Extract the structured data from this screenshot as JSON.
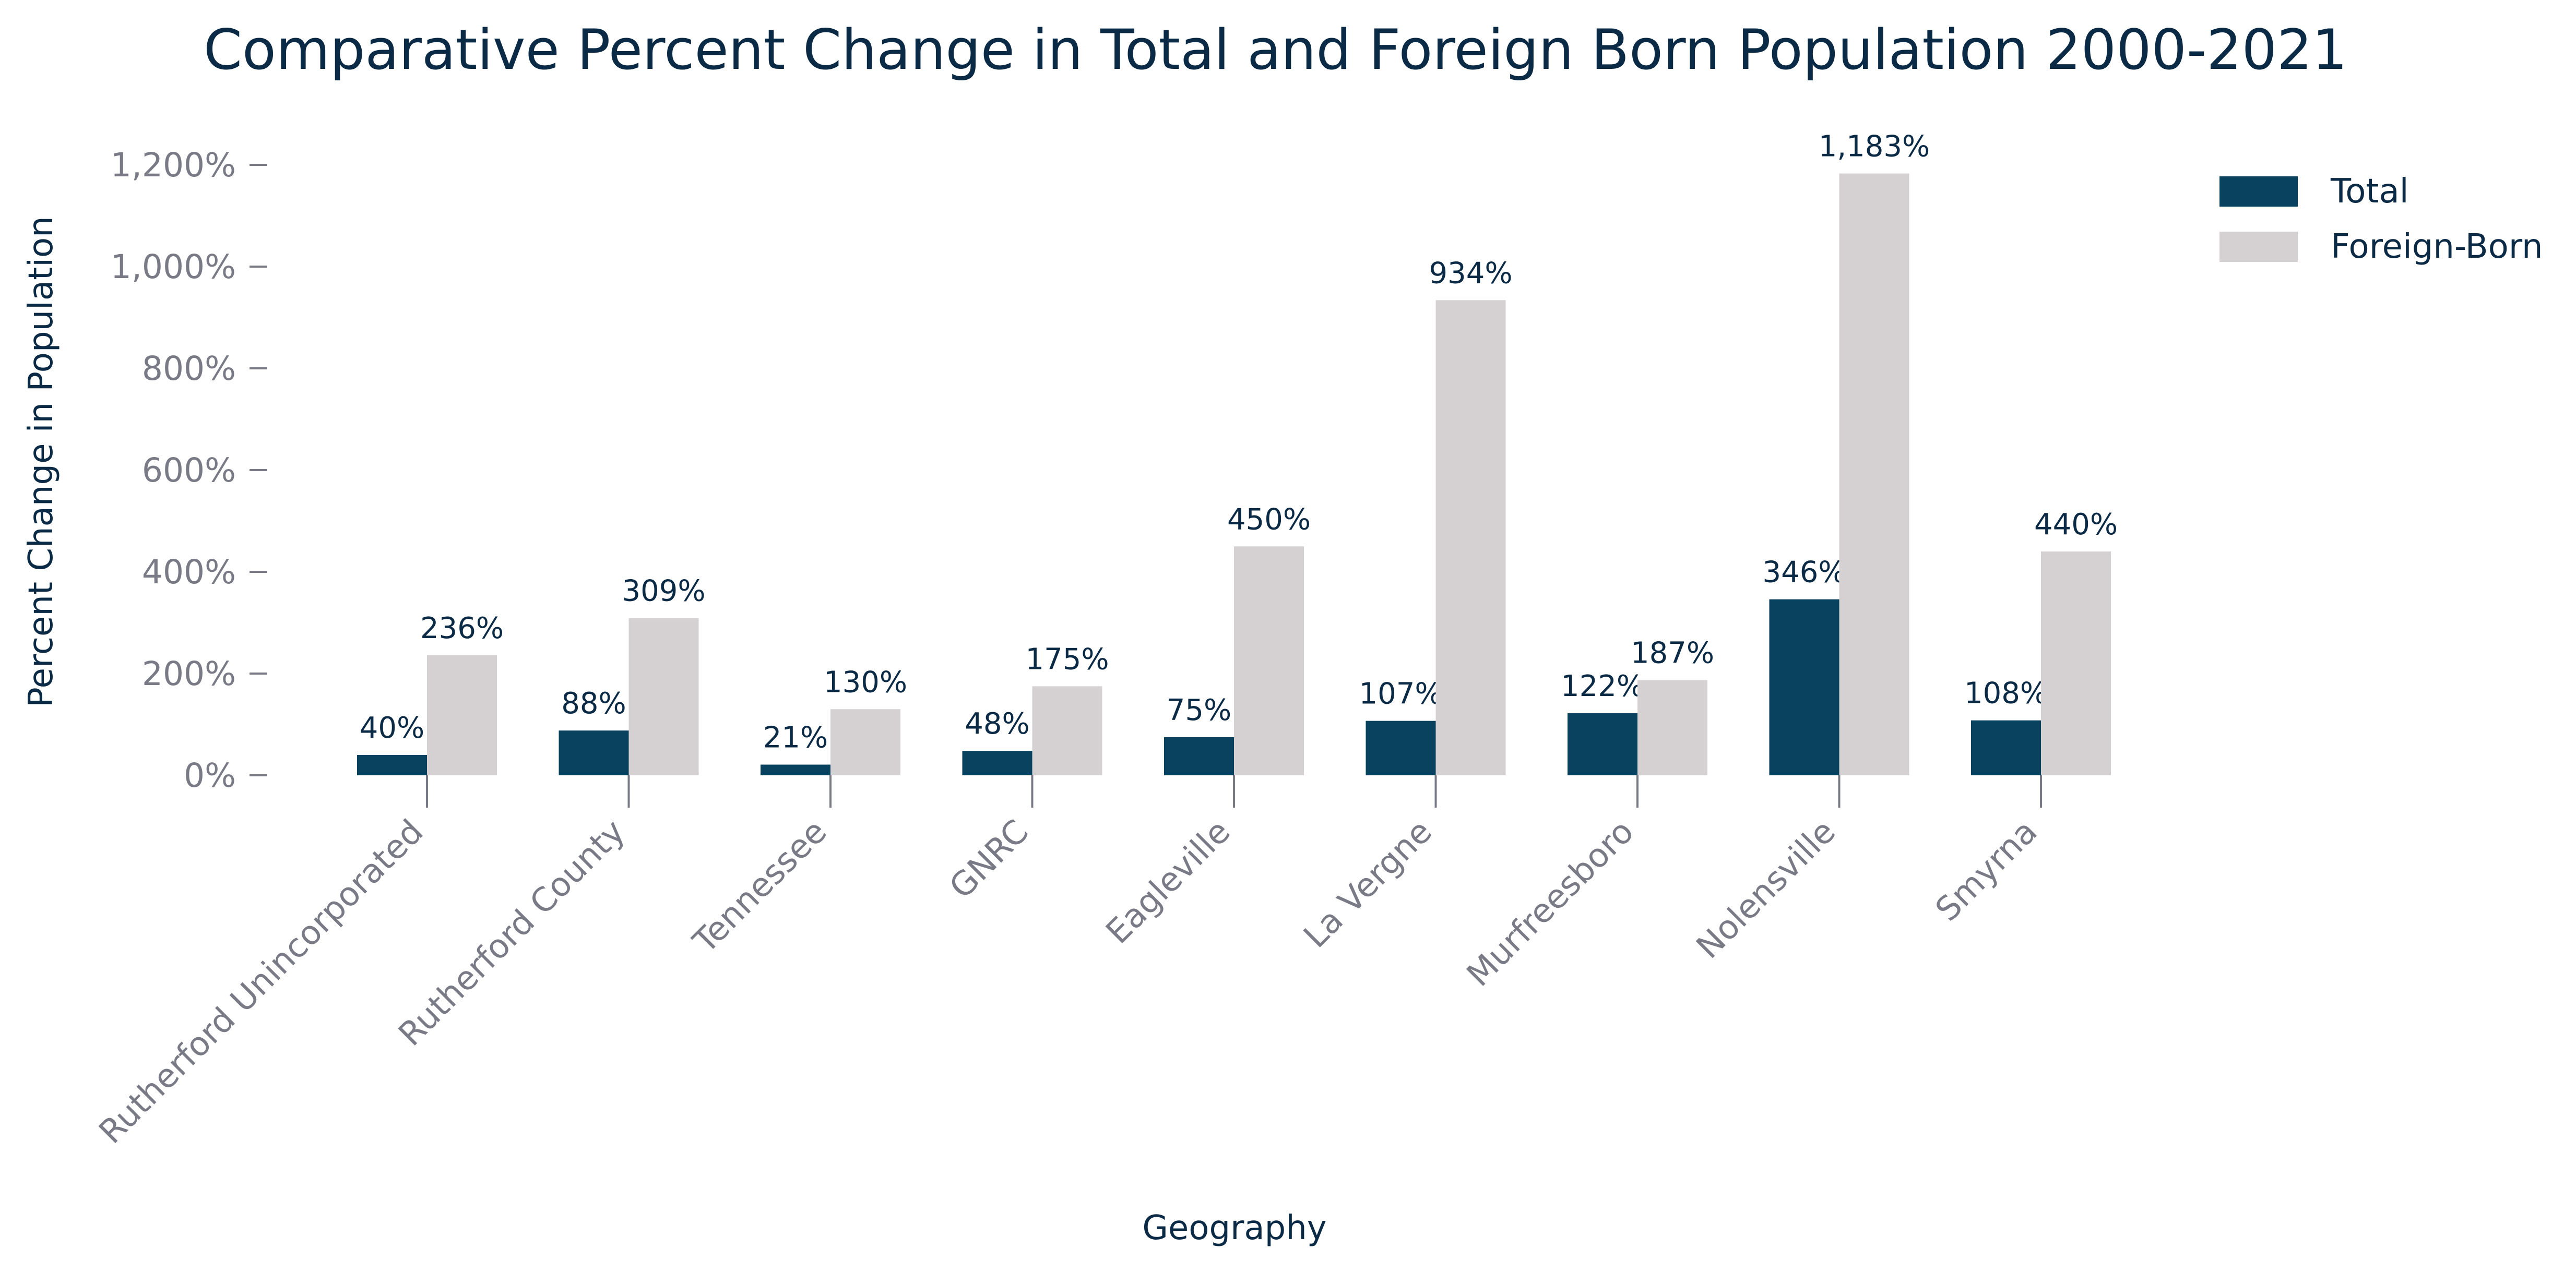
{
  "chart_data": {
    "type": "bar",
    "title": "Comparative Percent Change in Total and Foreign Born Population 2000-2021",
    "xlabel": "Geography",
    "ylabel": "Percent Change in Population",
    "categories": [
      "Rutherford Unincorporated",
      "Rutherford County",
      "Tennessee",
      "GNRC",
      "Eagleville",
      "La Vergne",
      "Murfreesboro",
      "Nolensville",
      "Smyrna"
    ],
    "series": [
      {
        "name": "Total",
        "color": "#09425e",
        "values": [
          40,
          88,
          21,
          48,
          75,
          107,
          122,
          346,
          108
        ],
        "labels": [
          "40%",
          "88%",
          "21%",
          "48%",
          "75%",
          "107%",
          "122%",
          "346%",
          "108%"
        ]
      },
      {
        "name": "Foreign-Born",
        "color": "#d5d0d2",
        "values": [
          236,
          309,
          130,
          175,
          450,
          934,
          187,
          1183,
          440
        ],
        "labels": [
          "236%",
          "309%",
          "130%",
          "175%",
          "450%",
          "934%",
          "187%",
          "1,183%",
          "440%"
        ]
      }
    ],
    "ylim": [
      0,
      1250
    ],
    "yticks": [
      0,
      200,
      400,
      600,
      800,
      1000,
      1200
    ],
    "ytick_labels": [
      "0%",
      "200%",
      "400%",
      "600%",
      "800%",
      "1,000%",
      "1,200%"
    ],
    "grid": false,
    "legend_position": "top-right"
  }
}
